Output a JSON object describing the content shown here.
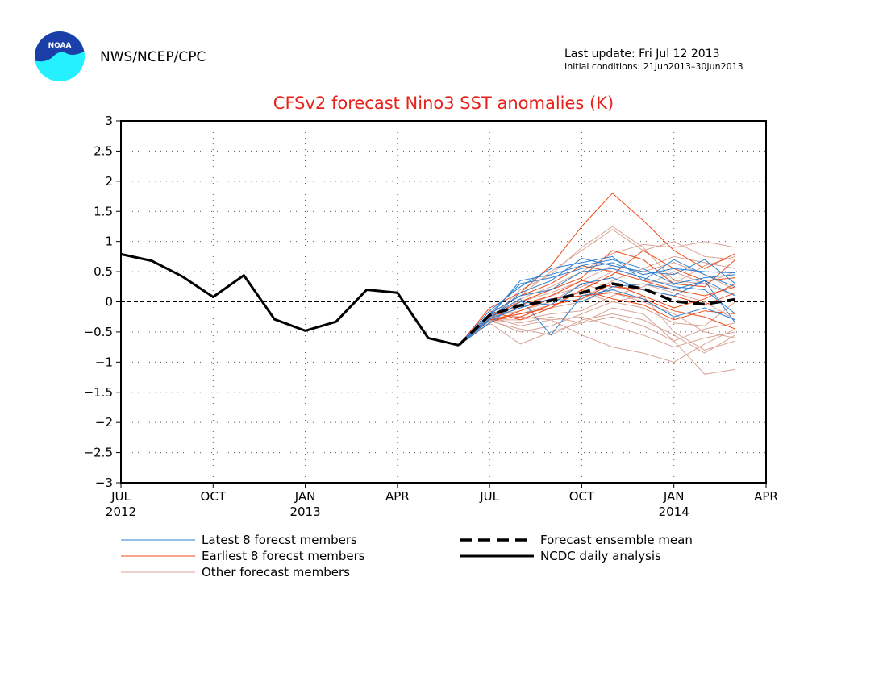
{
  "header": {
    "agency": "NWS/NCEP/CPC",
    "logo_text": "NOAA",
    "last_update": "Last update: Fri Jul 12 2013",
    "initial_conditions": "Initial conditions: 21Jun2013–30Jun2013"
  },
  "colors": {
    "title": "#e8221a",
    "latest": "#2d7fd2",
    "earliest": "#ee4a1a",
    "other": "#d8a496",
    "mean": "#000000",
    "analysis": "#000000",
    "logo_blue": "#1a3fa8",
    "logo_cyan": "#25f0ff"
  },
  "chart_data": {
    "type": "line",
    "title": "CFSv2 forecast Nino3 SST anomalies (K)",
    "xlabel": "",
    "ylabel": "",
    "ylim": [
      -3,
      3
    ],
    "yticks": [
      3,
      2.5,
      2,
      1.5,
      1,
      0.5,
      0,
      -0.5,
      -1,
      -1.5,
      -2,
      -2.5,
      -3
    ],
    "x_months": [
      "2012-07",
      "2012-08",
      "2012-09",
      "2012-10",
      "2012-11",
      "2012-12",
      "2013-01",
      "2013-02",
      "2013-03",
      "2013-04",
      "2013-05",
      "2013-06",
      "2013-07",
      "2013-08",
      "2013-09",
      "2013-10",
      "2013-11",
      "2013-12",
      "2014-01",
      "2014-02",
      "2014-03",
      "2014-04"
    ],
    "xticks": [
      {
        "month": "2012-07",
        "label": "JUL",
        "year": "2012"
      },
      {
        "month": "2012-10",
        "label": "OCT",
        "year": ""
      },
      {
        "month": "2013-01",
        "label": "JAN",
        "year": "2013"
      },
      {
        "month": "2013-04",
        "label": "APR",
        "year": ""
      },
      {
        "month": "2013-07",
        "label": "JUL",
        "year": ""
      },
      {
        "month": "2013-10",
        "label": "OCT",
        "year": ""
      },
      {
        "month": "2014-01",
        "label": "JAN",
        "year": "2014"
      },
      {
        "month": "2014-04",
        "label": "APR",
        "year": ""
      }
    ],
    "grid": true,
    "zero_line": true,
    "legend_position": "bottom",
    "legend": [
      {
        "key": "latest",
        "label": "Latest 8 forecst members",
        "style": "thin"
      },
      {
        "key": "earliest",
        "label": "Earliest 8 forecst members",
        "style": "thin"
      },
      {
        "key": "other",
        "label": "Other forecast members",
        "style": "thin"
      },
      {
        "key": "mean",
        "label": "Forecast ensemble mean",
        "style": "dashed"
      },
      {
        "key": "analysis",
        "label": "NCDC daily analysis",
        "style": "thick"
      }
    ],
    "forecast_months": [
      "2013-06",
      "2013-07",
      "2013-08",
      "2013-09",
      "2013-10",
      "2013-11",
      "2013-12",
      "2014-01",
      "2014-02",
      "2014-03"
    ],
    "ncdc_analysis": {
      "months": [
        "2012-07",
        "2012-08",
        "2012-09",
        "2012-10",
        "2012-11",
        "2012-12",
        "2013-01",
        "2013-02",
        "2013-03",
        "2013-04",
        "2013-05",
        "2013-06"
      ],
      "values": [
        0.79,
        0.68,
        0.42,
        0.08,
        0.44,
        -0.29,
        -0.48,
        -0.33,
        0.2,
        0.15,
        -0.6,
        -0.72
      ]
    },
    "ensemble_mean": {
      "months": [
        "2013-06",
        "2013-07",
        "2013-08",
        "2013-09",
        "2013-10",
        "2013-11",
        "2013-12",
        "2014-01",
        "2014-02",
        "2014-03"
      ],
      "values": [
        -0.72,
        -0.22,
        -0.06,
        0.02,
        0.15,
        0.3,
        0.22,
        0.01,
        -0.04,
        0.04
      ]
    },
    "latest_members": [
      [
        -0.72,
        -0.25,
        0.35,
        0.45,
        0.6,
        0.7,
        0.55,
        0.3,
        0.4,
        0.45
      ],
      [
        -0.72,
        -0.2,
        0.3,
        0.4,
        0.55,
        0.65,
        0.45,
        0.55,
        0.5,
        0.48
      ],
      [
        -0.72,
        -0.3,
        0.15,
        0.35,
        0.72,
        0.6,
        0.5,
        0.45,
        0.7,
        0.3
      ],
      [
        -0.72,
        -0.15,
        0.25,
        0.55,
        0.65,
        0.75,
        0.35,
        0.7,
        0.45,
        0.25
      ],
      [
        -0.72,
        -0.25,
        0.05,
        -0.55,
        0.1,
        0.2,
        0.05,
        -0.25,
        -0.1,
        -0.3
      ],
      [
        -0.72,
        -0.28,
        -0.1,
        0.05,
        0.0,
        0.25,
        0.3,
        0.2,
        0.35,
        0.1
      ],
      [
        -0.72,
        -0.2,
        0.1,
        0.2,
        0.5,
        0.55,
        0.4,
        0.25,
        0.2,
        -0.2
      ],
      [
        -0.72,
        -0.35,
        0.0,
        -0.05,
        0.3,
        0.4,
        0.2,
        0.1,
        0.35,
        -0.35
      ]
    ],
    "earliest_members": [
      [
        -0.72,
        -0.1,
        0.15,
        0.6,
        1.25,
        1.8,
        1.35,
        0.85,
        0.55,
        0.8
      ],
      [
        -0.72,
        -0.3,
        -0.2,
        -0.1,
        0.2,
        0.45,
        0.85,
        0.55,
        0.35,
        0.4
      ],
      [
        -0.72,
        -0.25,
        0.0,
        0.2,
        0.4,
        0.85,
        0.7,
        0.3,
        0.25,
        0.7
      ],
      [
        -0.72,
        -0.35,
        -0.15,
        0.05,
        0.1,
        0.15,
        0.05,
        -0.15,
        -0.25,
        -0.45
      ],
      [
        -0.72,
        -0.2,
        0.1,
        0.3,
        0.6,
        0.5,
        0.35,
        0.2,
        0.1,
        0.25
      ],
      [
        -0.72,
        -0.3,
        -0.25,
        -0.05,
        0.05,
        0.3,
        0.1,
        -0.1,
        0.05,
        0.3
      ],
      [
        -0.72,
        -0.15,
        -0.3,
        -0.1,
        0.2,
        0.05,
        -0.05,
        -0.3,
        -0.15,
        -0.2
      ],
      [
        -0.72,
        -0.25,
        -0.05,
        0.1,
        0.35,
        0.25,
        0.2,
        0.1,
        -0.05,
        0.15
      ]
    ],
    "other_members": [
      [
        -0.72,
        -0.3,
        -0.5,
        -0.4,
        -0.2,
        0.0,
        0.1,
        -0.5,
        -0.8,
        -0.65
      ],
      [
        -0.72,
        -0.25,
        -0.4,
        -0.3,
        -0.55,
        -0.75,
        -0.85,
        -1.0,
        -0.7,
        -0.45
      ],
      [
        -0.72,
        -0.35,
        -0.7,
        -0.5,
        -0.35,
        -0.1,
        -0.2,
        -0.65,
        -1.2,
        -1.12
      ],
      [
        -0.72,
        -0.2,
        0.1,
        0.5,
        0.85,
        1.2,
        0.85,
        1.0,
        0.75,
        0.7
      ],
      [
        -0.72,
        -0.3,
        0.2,
        0.45,
        0.9,
        1.25,
        0.9,
        0.35,
        0.3,
        0.5
      ],
      [
        -0.72,
        -0.25,
        -0.1,
        0.1,
        0.25,
        0.5,
        0.35,
        0.3,
        0.6,
        0.75
      ],
      [
        -0.72,
        -0.3,
        -0.2,
        -0.1,
        0.0,
        0.2,
        0.3,
        0.15,
        0.0,
        -0.3
      ],
      [
        -0.72,
        -0.2,
        -0.25,
        -0.3,
        -0.25,
        -0.4,
        -0.55,
        -0.75,
        -0.6,
        -0.5
      ],
      [
        -0.72,
        -0.28,
        -0.1,
        0.05,
        0.15,
        0.0,
        -0.1,
        -0.35,
        -0.4,
        0.0
      ],
      [
        -0.72,
        -0.35,
        0.05,
        0.25,
        0.5,
        0.8,
        0.95,
        0.9,
        1.0,
        0.9
      ],
      [
        -0.72,
        -0.3,
        -0.3,
        -0.2,
        -0.15,
        0.1,
        0.25,
        0.5,
        0.3,
        0.1
      ],
      [
        -0.72,
        -0.25,
        -0.15,
        0.0,
        0.3,
        0.15,
        0.0,
        -0.2,
        -0.5,
        -0.6
      ],
      [
        -0.72,
        -0.32,
        -0.45,
        -0.55,
        -0.3,
        -0.2,
        -0.3,
        -0.55,
        -0.85,
        -0.55
      ],
      [
        -0.72,
        -0.22,
        0.0,
        0.15,
        0.35,
        0.6,
        0.5,
        0.65,
        0.45,
        0.2
      ],
      [
        -0.72,
        -0.28,
        -0.2,
        -0.05,
        0.05,
        0.35,
        0.55,
        0.75,
        0.65,
        0.55
      ],
      [
        -0.72,
        -0.3,
        -0.35,
        -0.25,
        -0.35,
        -0.25,
        -0.4,
        -0.65,
        -0.45,
        -0.35
      ]
    ]
  }
}
